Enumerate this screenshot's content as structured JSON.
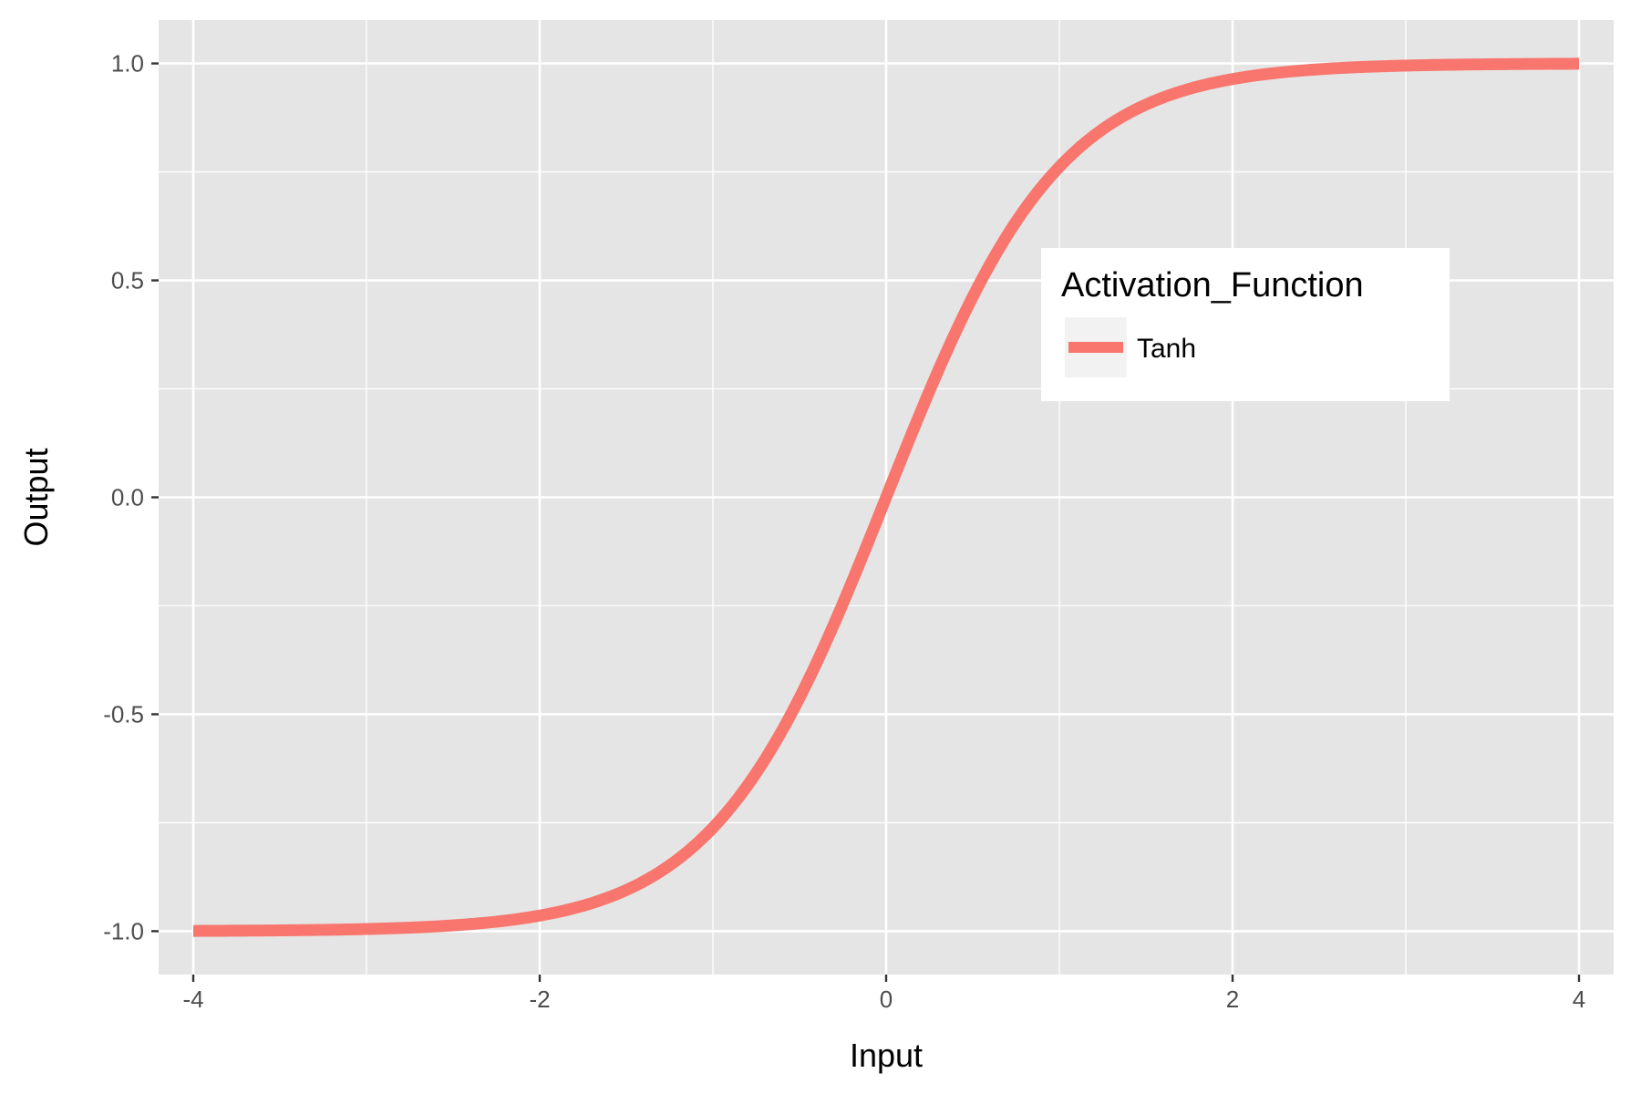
{
  "chart_data": {
    "type": "line",
    "xlabel": "Input",
    "ylabel": "Output",
    "xlim": [
      -4.2,
      4.2
    ],
    "ylim": [
      -1.1,
      1.1
    ],
    "x_ticks": [
      -4,
      -2,
      0,
      2,
      4
    ],
    "x_tick_labels": [
      "-4",
      "-2",
      "0",
      "2",
      "4"
    ],
    "y_ticks": [
      -1.0,
      -0.5,
      0.0,
      0.5,
      1.0
    ],
    "y_tick_labels": [
      "-1.0",
      "-0.5",
      "0.0",
      "0.5",
      "1.0"
    ],
    "x_minor_ticks": [
      -3,
      -1,
      1,
      3
    ],
    "y_minor_ticks": [
      -0.75,
      -0.25,
      0.25,
      0.75
    ],
    "grid": true,
    "legend": {
      "title": "Activation_Function",
      "placement": "inside-top-right",
      "entries": [
        {
          "label": "Tanh",
          "color": "#F8766D"
        }
      ]
    },
    "series": [
      {
        "name": "Tanh",
        "color": "#F8766D",
        "x": [
          -4,
          -3.5,
          -3,
          -2.5,
          -2,
          -1.75,
          -1.5,
          -1.25,
          -1,
          -0.75,
          -0.5,
          -0.25,
          0,
          0.25,
          0.5,
          0.75,
          1,
          1.25,
          1.5,
          1.75,
          2,
          2.5,
          3,
          3.5,
          4
        ],
        "y": [
          -0.9993,
          -0.9982,
          -0.9951,
          -0.9866,
          -0.964,
          -0.9414,
          -0.9051,
          -0.8483,
          -0.7616,
          -0.6351,
          -0.4621,
          -0.2449,
          0.0,
          0.2449,
          0.4621,
          0.6351,
          0.7616,
          0.8483,
          0.9051,
          0.9414,
          0.964,
          0.9866,
          0.9951,
          0.9982,
          0.9993
        ]
      }
    ]
  },
  "colors": {
    "panel_background": "#E5E5E5",
    "grid": "#FFFFFF",
    "line": "#F8766D"
  }
}
